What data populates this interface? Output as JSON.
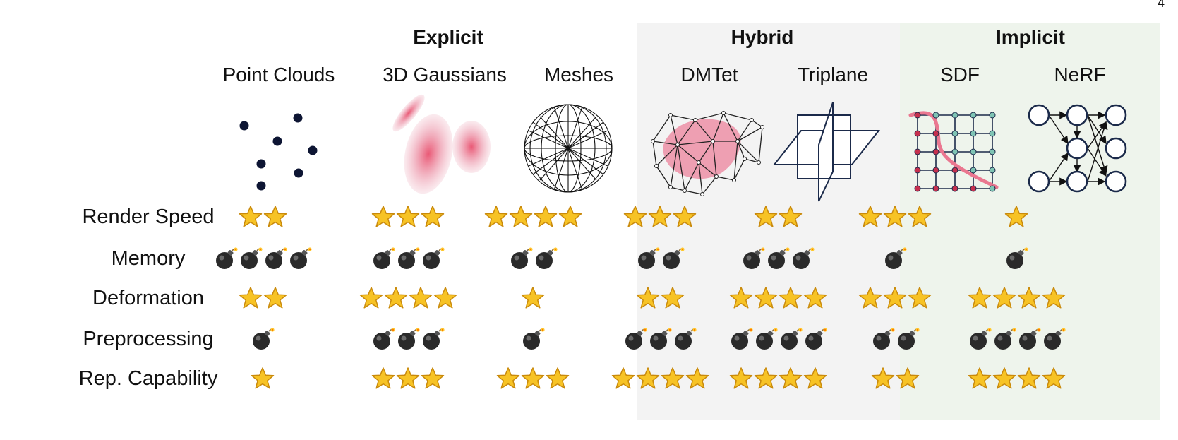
{
  "page_number": "4",
  "groups": [
    {
      "title": "Explicit",
      "columns": [
        0,
        1,
        2
      ]
    },
    {
      "title": "Hybrid",
      "columns": [
        3,
        4
      ]
    },
    {
      "title": "Implicit",
      "columns": [
        5,
        6
      ]
    }
  ],
  "columns": [
    {
      "name": "Point Clouds",
      "icon": "point-clouds-illustration"
    },
    {
      "name": "3D Gaussians",
      "icon": "gaussians-illustration"
    },
    {
      "name": "Meshes",
      "icon": "mesh-sphere-illustration"
    },
    {
      "name": "DMTet",
      "icon": "dmtet-illustration"
    },
    {
      "name": "Triplane",
      "icon": "triplane-illustration"
    },
    {
      "name": "SDF",
      "icon": "sdf-grid-illustration"
    },
    {
      "name": "NeRF",
      "icon": "nerf-network-illustration"
    }
  ],
  "rows": [
    {
      "label": "Render Speed",
      "symbol": "star",
      "counts": [
        2,
        3,
        4,
        3,
        2,
        3,
        1
      ]
    },
    {
      "label": "Memory",
      "symbol": "bomb",
      "counts": [
        4,
        3,
        2,
        2,
        3,
        1,
        1
      ]
    },
    {
      "label": "Deformation",
      "symbol": "star",
      "counts": [
        2,
        4,
        1,
        2,
        4,
        3,
        4
      ]
    },
    {
      "label": "Preprocessing",
      "symbol": "bomb",
      "counts": [
        1,
        3,
        1,
        3,
        4,
        2,
        4
      ]
    },
    {
      "label": "Rep. Capability",
      "symbol": "star",
      "counts": [
        1,
        3,
        3,
        4,
        4,
        2,
        4
      ]
    }
  ],
  "colors": {
    "star_fill": "#f7c325",
    "star_stroke": "#c98a0c",
    "bomb_body": "#2a2a2a",
    "accent_pink": "#e8708c",
    "hybrid_panel": "#f3f3f3",
    "implicit_panel": "#eef4ec"
  }
}
